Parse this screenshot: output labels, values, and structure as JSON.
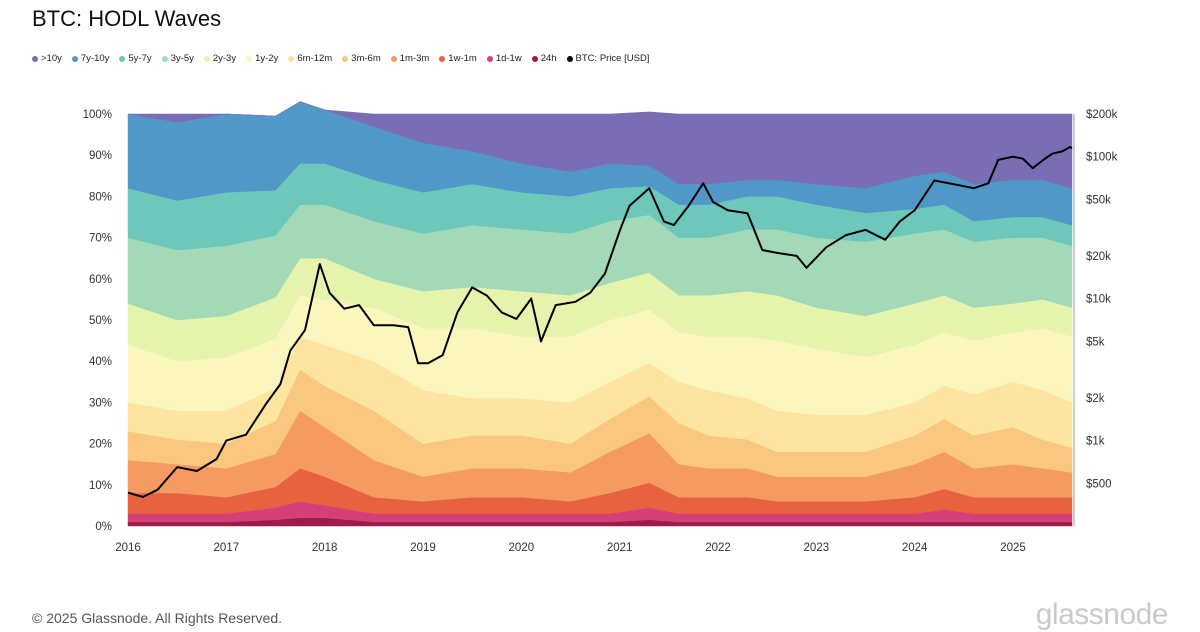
{
  "page": {
    "footer": "© 2025 Glassnode. All Rights Reserved.",
    "brand": "glassnode"
  },
  "chart_data": {
    "type": "area",
    "title": "BTC: HODL Waves",
    "legend_position": "top-left",
    "grid": false,
    "x": [
      2016.0,
      2016.5,
      2017.0,
      2017.5,
      2017.75,
      2018.0,
      2018.5,
      2019.0,
      2019.5,
      2020.0,
      2020.5,
      2020.9,
      2021.3,
      2021.6,
      2021.9,
      2022.3,
      2022.6,
      2023.0,
      2023.5,
      2024.0,
      2024.3,
      2024.6,
      2025.0,
      2025.3,
      2025.6
    ],
    "x_ticks": [
      "2016",
      "2017",
      "2018",
      "2019",
      "2020",
      "2021",
      "2022",
      "2023",
      "2024",
      "2025"
    ],
    "x_tick_values": [
      2016,
      2017,
      2018,
      2019,
      2020,
      2021,
      2022,
      2023,
      2024,
      2025
    ],
    "x_range": [
      2016.0,
      2025.6
    ],
    "y_left_ticks": [
      "0%",
      "10%",
      "20%",
      "30%",
      "40%",
      "50%",
      "60%",
      "70%",
      "80%",
      "90%",
      "100%"
    ],
    "y_left_range": [
      0,
      100
    ],
    "y_right_scale": "log",
    "y_right_ticks": [
      "$500",
      "$1k",
      "$2k",
      "$5k",
      "$10k",
      "$20k",
      "$50k",
      "$100k",
      "$200k"
    ],
    "y_right_tick_values": [
      500,
      1000,
      2000,
      5000,
      10000,
      20000,
      50000,
      100000,
      200000
    ],
    "y_right_range": [
      250,
      200000
    ],
    "series": [
      {
        "name": "24h",
        "color": "#9e1b4b",
        "values": [
          1,
          1,
          1,
          1.5,
          2,
          2,
          1,
          1,
          1,
          1,
          1,
          1,
          1.5,
          1,
          1,
          1,
          1,
          1,
          1,
          1,
          1,
          1,
          1,
          1,
          1
        ]
      },
      {
        "name": "1d-1w",
        "color": "#d6407a",
        "values": [
          2,
          2,
          2,
          3,
          4,
          3,
          2,
          2,
          2,
          2,
          2,
          2,
          3,
          2,
          2,
          2,
          2,
          2,
          2,
          2,
          3,
          2,
          2,
          2,
          2
        ]
      },
      {
        "name": "1w-1m",
        "color": "#e8623f",
        "values": [
          5,
          5,
          4,
          5,
          8,
          7,
          4,
          3,
          4,
          4,
          3,
          5,
          6,
          4,
          4,
          4,
          3,
          3,
          3,
          4,
          5,
          4,
          4,
          4,
          4
        ]
      },
      {
        "name": "1m-3m",
        "color": "#f59a61",
        "values": [
          8,
          7,
          7,
          8,
          14,
          12,
          9,
          6,
          7,
          7,
          7,
          10,
          12,
          8,
          7,
          7,
          6,
          6,
          6,
          8,
          9,
          7,
          8,
          7,
          6
        ]
      },
      {
        "name": "3m-6m",
        "color": "#f9c77f",
        "values": [
          7,
          6,
          6,
          8,
          10,
          10,
          12,
          8,
          8,
          8,
          7,
          8,
          9,
          10,
          8,
          7,
          6,
          6,
          6,
          7,
          8,
          8,
          9,
          7,
          6
        ]
      },
      {
        "name": "6m-12m",
        "color": "#fde4a0",
        "values": [
          7,
          7,
          8,
          8,
          8,
          10,
          12,
          13,
          9,
          9,
          10,
          9,
          8,
          10,
          11,
          10,
          10,
          9,
          9,
          8,
          8,
          10,
          11,
          12,
          11
        ]
      },
      {
        "name": "1y-2y",
        "color": "#fbf6bd",
        "values": [
          14,
          12,
          13,
          12,
          10,
          11,
          13,
          15,
          17,
          15,
          16,
          15,
          13,
          12,
          13,
          15,
          17,
          16,
          14,
          14,
          13,
          13,
          12,
          15,
          16
        ]
      },
      {
        "name": "2y-3y",
        "color": "#e6f3ad",
        "values": [
          10,
          10,
          10,
          10,
          9,
          10,
          7,
          9,
          10,
          11,
          10,
          9,
          9,
          9,
          10,
          11,
          11,
          10,
          10,
          10,
          9,
          8,
          7,
          7,
          7
        ]
      },
      {
        "name": "3y-5y",
        "color": "#a3d9b6",
        "values": [
          16,
          17,
          17,
          15,
          13,
          13,
          14,
          14,
          15,
          15,
          15,
          15,
          14,
          14,
          14,
          15,
          16,
          17,
          18,
          17,
          16,
          16,
          16,
          15,
          15
        ]
      },
      {
        "name": "5y-7y",
        "color": "#6ec7bb",
        "values": [
          12,
          12,
          13,
          11,
          10,
          10,
          10,
          10,
          10,
          9,
          9,
          8,
          7,
          8,
          8,
          8,
          8,
          8,
          7,
          6,
          6,
          5,
          5,
          5,
          5
        ]
      },
      {
        "name": "7y-10y",
        "color": "#4f98c7",
        "values": [
          18,
          19,
          19,
          18,
          15,
          13,
          13,
          12,
          8,
          7,
          6,
          6,
          5,
          5,
          5,
          4,
          4,
          5,
          6,
          8,
          8,
          9,
          9,
          9,
          9
        ]
      },
      {
        "name": ">10y",
        "color": "#7b6db4",
        "values": [
          0,
          2,
          0,
          0,
          0,
          0,
          3,
          7,
          9,
          12,
          14,
          12,
          13,
          17,
          17,
          16,
          16,
          17,
          18,
          15,
          14,
          17,
          16,
          16,
          18
        ]
      }
    ],
    "price_series": {
      "name": "BTC: Price [USD]",
      "color": "#000000",
      "points": [
        [
          2016.0,
          430
        ],
        [
          2016.15,
          400
        ],
        [
          2016.3,
          450
        ],
        [
          2016.5,
          650
        ],
        [
          2016.7,
          610
        ],
        [
          2016.9,
          740
        ],
        [
          2017.0,
          1000
        ],
        [
          2017.2,
          1100
        ],
        [
          2017.4,
          1800
        ],
        [
          2017.55,
          2500
        ],
        [
          2017.65,
          4300
        ],
        [
          2017.8,
          6000
        ],
        [
          2017.95,
          17500
        ],
        [
          2018.05,
          11000
        ],
        [
          2018.2,
          8500
        ],
        [
          2018.35,
          9000
        ],
        [
          2018.5,
          6500
        ],
        [
          2018.7,
          6500
        ],
        [
          2018.85,
          6300
        ],
        [
          2018.95,
          3500
        ],
        [
          2019.05,
          3500
        ],
        [
          2019.2,
          4000
        ],
        [
          2019.35,
          8000
        ],
        [
          2019.5,
          12000
        ],
        [
          2019.65,
          10500
        ],
        [
          2019.8,
          8000
        ],
        [
          2019.95,
          7200
        ],
        [
          2020.1,
          10000
        ],
        [
          2020.2,
          5000
        ],
        [
          2020.35,
          9000
        ],
        [
          2020.55,
          9500
        ],
        [
          2020.7,
          11000
        ],
        [
          2020.85,
          15000
        ],
        [
          2021.0,
          30000
        ],
        [
          2021.1,
          45000
        ],
        [
          2021.3,
          60000
        ],
        [
          2021.45,
          35000
        ],
        [
          2021.55,
          33000
        ],
        [
          2021.7,
          45000
        ],
        [
          2021.85,
          65000
        ],
        [
          2021.95,
          48000
        ],
        [
          2022.1,
          42000
        ],
        [
          2022.3,
          40000
        ],
        [
          2022.45,
          22000
        ],
        [
          2022.6,
          21000
        ],
        [
          2022.8,
          20000
        ],
        [
          2022.9,
          16500
        ],
        [
          2023.1,
          23000
        ],
        [
          2023.3,
          28000
        ],
        [
          2023.5,
          30500
        ],
        [
          2023.7,
          26000
        ],
        [
          2023.85,
          35000
        ],
        [
          2024.0,
          42000
        ],
        [
          2024.2,
          68000
        ],
        [
          2024.45,
          63000
        ],
        [
          2024.6,
          60000
        ],
        [
          2024.75,
          65000
        ],
        [
          2024.85,
          95000
        ],
        [
          2025.0,
          100000
        ],
        [
          2025.1,
          97000
        ],
        [
          2025.2,
          83000
        ],
        [
          2025.3,
          94000
        ],
        [
          2025.4,
          105000
        ],
        [
          2025.5,
          109000
        ],
        [
          2025.58,
          117000
        ],
        [
          2025.6,
          115000
        ]
      ]
    }
  }
}
